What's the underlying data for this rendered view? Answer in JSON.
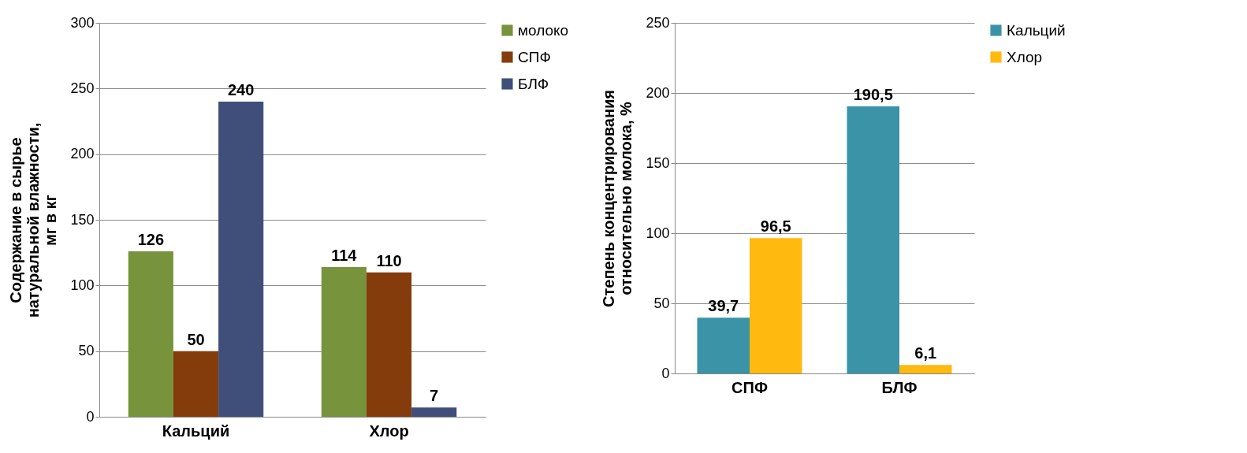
{
  "chart_data": [
    {
      "type": "bar",
      "ylabel": "Содержание в сырье натуральной влажности, мг в кг",
      "categories": [
        "Кальций",
        "Хлор"
      ],
      "series": [
        {
          "name": "молоко",
          "color": "#77933c",
          "values": [
            126,
            114
          ]
        },
        {
          "name": "СПФ",
          "color": "#843c0c",
          "values": [
            50,
            110
          ]
        },
        {
          "name": "БЛФ",
          "color": "#3f4f7a",
          "values": [
            240,
            7
          ]
        }
      ],
      "ylim": [
        0,
        300
      ],
      "yticks": [
        0,
        50,
        100,
        150,
        200,
        250,
        300
      ],
      "grid": "y",
      "legend": "right",
      "data_labels": true
    },
    {
      "type": "bar",
      "ylabel": "Степень концентрирования относительно молока, %",
      "categories": [
        "СПФ",
        "БЛФ"
      ],
      "series": [
        {
          "name": "Кальций",
          "color": "#3a93a6",
          "values": [
            39.7,
            190.5
          ],
          "value_labels": [
            "39,7",
            "190,5"
          ]
        },
        {
          "name": "Хлор",
          "color": "#ffb90f",
          "values": [
            96.5,
            6.1
          ],
          "value_labels": [
            "96,5",
            "6,1"
          ]
        }
      ],
      "ylim": [
        0,
        250
      ],
      "yticks": [
        0,
        50,
        100,
        150,
        200,
        250
      ],
      "grid": "y",
      "legend": "right"
    }
  ]
}
